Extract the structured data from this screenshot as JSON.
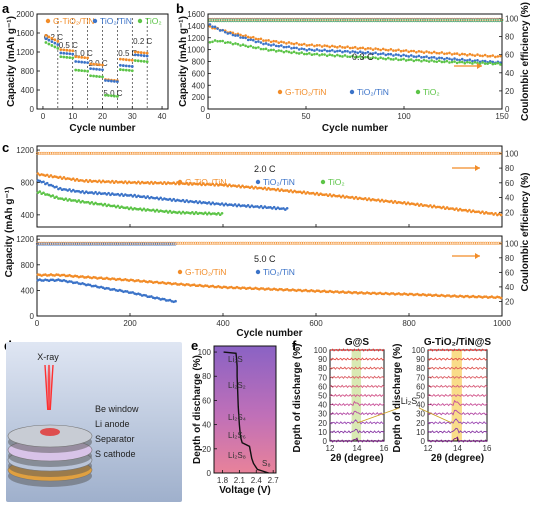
{
  "colors": {
    "orange": "#f28c28",
    "blue": "#3b73c8",
    "green": "#5cc447",
    "accent_red": "#e02020"
  },
  "panels": {
    "a": "a",
    "b": "b",
    "c": "c",
    "d": "d",
    "e": "e",
    "f": "f"
  },
  "legend": {
    "g_tio2": "G-TiO₂/TiN",
    "tio2_tin": "TiO₂/TiN",
    "tio2": "TiO₂"
  },
  "chart_data": [
    {
      "panel": "a",
      "type": "scatter",
      "ylabel": "Capacity (mAh g⁻¹)",
      "xlabel": "Cycle number",
      "xlim": [
        -2,
        42
      ],
      "ylim": [
        0,
        2000
      ],
      "xticks": [
        0,
        10,
        20,
        30,
        40
      ],
      "yticks": [
        0,
        400,
        800,
        1200,
        1600,
        2000
      ],
      "rate_labels": [
        "0.2 C",
        "0.5 C",
        "1.0 C",
        "2.0 C",
        "5.0 C",
        "0.5 C",
        "0.2 C"
      ],
      "series": [
        {
          "name": "G-TiO₂/TiN",
          "segments": [
            1450,
            1250,
            1100,
            950,
            620,
            1050,
            1200
          ]
        },
        {
          "name": "TiO₂/TiN",
          "segments": [
            1380,
            1180,
            1000,
            850,
            600,
            920,
            1140
          ]
        },
        {
          "name": "TiO₂",
          "segments": [
            1300,
            1100,
            820,
            700,
            290,
            830,
            1020
          ]
        }
      ]
    },
    {
      "panel": "b",
      "type": "scatter",
      "ylabel": "Capacity (mAh g⁻¹)",
      "y2label": "Coulombic efficiency (%)",
      "xlabel": "Cycle number",
      "xlim": [
        0,
        150
      ],
      "ylim": [
        0,
        1600
      ],
      "y2lim": [
        0,
        105
      ],
      "xticks": [
        0,
        50,
        100,
        150
      ],
      "yticks": [
        0,
        200,
        400,
        600,
        800,
        1000,
        1200,
        1400,
        1600
      ],
      "y2ticks": [
        0,
        20,
        40,
        60,
        80,
        100
      ],
      "rate": "0.3 C",
      "series": [
        {
          "name": "G-TiO₂/TiN",
          "x": [
            1,
            5,
            10,
            20,
            30,
            50,
            75,
            100,
            125,
            150
          ],
          "y": [
            1380,
            1350,
            1300,
            1220,
            1150,
            1080,
            1030,
            980,
            930,
            880
          ]
        },
        {
          "name": "TiO₂/TiN",
          "x": [
            1,
            5,
            10,
            20,
            30,
            50,
            75,
            100,
            125,
            150
          ],
          "y": [
            1420,
            1350,
            1280,
            1180,
            1090,
            1000,
            960,
            900,
            840,
            780
          ]
        },
        {
          "name": "TiO₂",
          "x": [
            1,
            5,
            10,
            20,
            30,
            50,
            75,
            100,
            125,
            150
          ],
          "y": [
            1130,
            1150,
            1120,
            1060,
            1000,
            930,
            880,
            830,
            790,
            760
          ]
        }
      ],
      "ce": 99
    },
    {
      "panel": "c-top",
      "type": "scatter",
      "ylabel": "Capacity (mAh g⁻¹)",
      "y2label": "Coulombic efficiency (%)",
      "xlim": [
        0,
        1000
      ],
      "ylim": [
        250,
        1250
      ],
      "y2lim": [
        0,
        110
      ],
      "yticks": [
        400,
        800,
        1200
      ],
      "y2ticks": [
        20,
        40,
        60,
        80,
        100
      ],
      "rate": "2.0 C",
      "series": [
        {
          "name": "G-TiO₂/TiN",
          "x": [
            5,
            50,
            100,
            200,
            300,
            400,
            500,
            600,
            700,
            800,
            900,
            1000
          ],
          "y": [
            900,
            860,
            820,
            800,
            790,
            770,
            720,
            660,
            600,
            540,
            470,
            400
          ]
        },
        {
          "name": "TiO₂/TiN",
          "x": [
            5,
            50,
            100,
            200,
            300,
            400,
            500,
            540
          ],
          "y": [
            820,
            720,
            680,
            640,
            580,
            530,
            490,
            470
          ]
        },
        {
          "name": "TiO₂",
          "x": [
            5,
            50,
            100,
            200,
            300,
            400
          ],
          "y": [
            680,
            600,
            560,
            480,
            430,
            410
          ]
        }
      ],
      "ce": 100
    },
    {
      "panel": "c-bottom",
      "type": "scatter",
      "xlabel": "Cycle number",
      "xlim": [
        0,
        1000
      ],
      "ylim": [
        0,
        1250
      ],
      "y2lim": [
        0,
        110
      ],
      "xticks": [
        0,
        200,
        400,
        600,
        800,
        1000
      ],
      "yticks": [
        0,
        400,
        800,
        1200
      ],
      "y2ticks": [
        20,
        40,
        60,
        80,
        100
      ],
      "rate": "5.0 C",
      "series": [
        {
          "name": "G-TiO₂/TiN",
          "x": [
            5,
            50,
            100,
            200,
            300,
            400,
            500,
            600,
            700,
            800,
            900,
            1000
          ],
          "y": [
            640,
            640,
            610,
            560,
            500,
            450,
            420,
            390,
            360,
            340,
            310,
            290
          ]
        },
        {
          "name": "TiO₂/TiN",
          "x": [
            5,
            50,
            100,
            150,
            200,
            250,
            300
          ],
          "y": [
            560,
            560,
            500,
            430,
            370,
            290,
            220
          ]
        }
      ],
      "ce": 100
    },
    {
      "panel": "d",
      "type": "diagram",
      "labels": {
        "xray": "X-ray",
        "window": "Be window",
        "anode": "Li anode",
        "sep": "Separator",
        "cathode": "S cathode"
      }
    },
    {
      "panel": "e",
      "type": "line",
      "xlabel": "Voltage (V)",
      "ylabel": "Depth of discharge (%)",
      "xlim": [
        1.65,
        2.75
      ],
      "ylim": [
        0,
        105
      ],
      "xticks": [
        1.8,
        2.1,
        2.4,
        2.7
      ],
      "yticks": [
        0,
        20,
        40,
        60,
        80,
        100
      ],
      "x": [
        2.62,
        2.42,
        2.35,
        2.32,
        2.3,
        2.28,
        2.15,
        2.12,
        2.1,
        2.08,
        2.07,
        2.06,
        2.06,
        2.05,
        2.04,
        1.82
      ],
      "y": [
        0,
        3,
        8,
        12,
        17,
        22,
        25,
        30,
        40,
        55,
        68,
        80,
        88,
        95,
        99,
        100
      ],
      "species": [
        "Li₂S",
        "Li₂S₂",
        "Li₂S₄",
        "Li₂S₆",
        "Li₂S₈",
        "S₈"
      ]
    },
    {
      "panel": "f",
      "type": "line",
      "titles": [
        "G@S",
        "G-TiO₂/TiN@S"
      ],
      "xlabel": "2θ (degree)",
      "ylabel": "Depth of discharge (%)",
      "xlim": [
        12,
        16
      ],
      "xticks": [
        12,
        14,
        16
      ],
      "yticks": [
        0,
        10,
        20,
        30,
        40,
        50,
        60,
        70,
        80,
        90,
        100
      ],
      "annotation": "Li₂S"
    }
  ]
}
